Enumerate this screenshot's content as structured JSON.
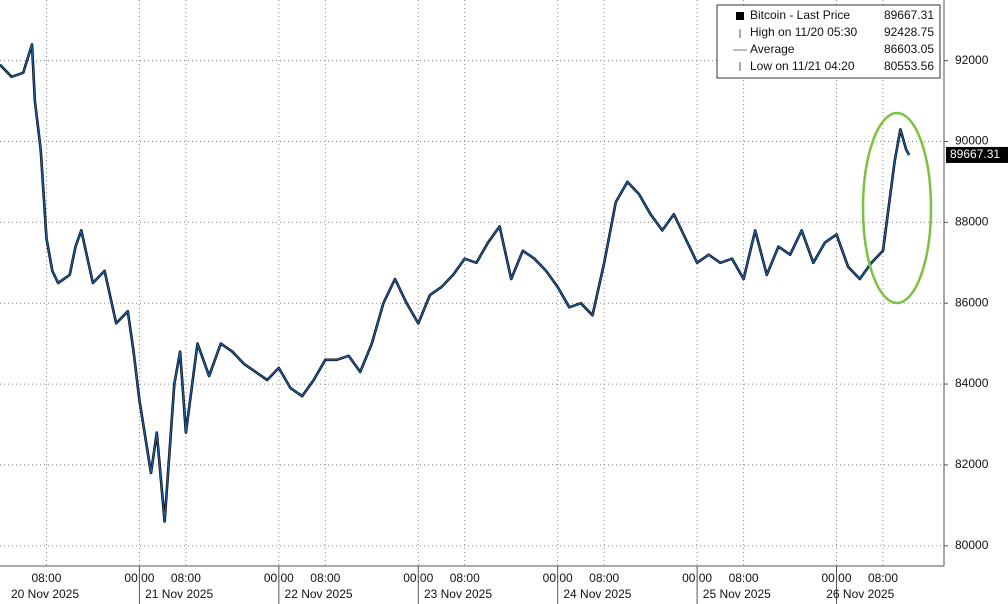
{
  "chart_data": {
    "type": "line",
    "series": [
      {
        "name": "Bitcoin - Last Price",
        "color": "#1d5a9e",
        "x": [
          "2025-11-20 00:00",
          "2025-11-20 02:00",
          "2025-11-20 04:00",
          "2025-11-20 05:30",
          "2025-11-20 06:00",
          "2025-11-20 07:00",
          "2025-11-20 08:00",
          "2025-11-20 09:00",
          "2025-11-20 10:00",
          "2025-11-20 12:00",
          "2025-11-20 13:00",
          "2025-11-20 14:00",
          "2025-11-20 16:00",
          "2025-11-20 18:00",
          "2025-11-20 20:00",
          "2025-11-20 22:00",
          "2025-11-20 23:00",
          "2025-11-21 00:00",
          "2025-11-21 02:00",
          "2025-11-21 03:00",
          "2025-11-21 04:20",
          "2025-11-21 06:00",
          "2025-11-21 07:00",
          "2025-11-21 08:00",
          "2025-11-21 10:00",
          "2025-11-21 12:00",
          "2025-11-21 14:00",
          "2025-11-21 16:00",
          "2025-11-21 18:00",
          "2025-11-21 20:00",
          "2025-11-21 22:00",
          "2025-11-22 00:00",
          "2025-11-22 02:00",
          "2025-11-22 04:00",
          "2025-11-22 06:00",
          "2025-11-22 08:00",
          "2025-11-22 10:00",
          "2025-11-22 12:00",
          "2025-11-22 14:00",
          "2025-11-22 16:00",
          "2025-11-22 18:00",
          "2025-11-22 20:00",
          "2025-11-22 22:00",
          "2025-11-23 00:00",
          "2025-11-23 02:00",
          "2025-11-23 04:00",
          "2025-11-23 06:00",
          "2025-11-23 08:00",
          "2025-11-23 10:00",
          "2025-11-23 12:00",
          "2025-11-23 14:00",
          "2025-11-23 16:00",
          "2025-11-23 18:00",
          "2025-11-23 20:00",
          "2025-11-23 22:00",
          "2025-11-24 00:00",
          "2025-11-24 02:00",
          "2025-11-24 04:00",
          "2025-11-24 06:00",
          "2025-11-24 08:00",
          "2025-11-24 10:00",
          "2025-11-24 12:00",
          "2025-11-24 14:00",
          "2025-11-24 16:00",
          "2025-11-24 18:00",
          "2025-11-24 20:00",
          "2025-11-24 22:00",
          "2025-11-25 00:00",
          "2025-11-25 02:00",
          "2025-11-25 04:00",
          "2025-11-25 06:00",
          "2025-11-25 08:00",
          "2025-11-25 10:00",
          "2025-11-25 12:00",
          "2025-11-25 14:00",
          "2025-11-25 16:00",
          "2025-11-25 18:00",
          "2025-11-25 20:00",
          "2025-11-25 22:00",
          "2025-11-26 00:00",
          "2025-11-26 02:00",
          "2025-11-26 04:00",
          "2025-11-26 06:00",
          "2025-11-26 08:00",
          "2025-11-26 10:00",
          "2025-11-26 11:00",
          "2025-11-26 12:00",
          "2025-11-26 12:30"
        ],
        "values": [
          91900,
          91600,
          91700,
          92400,
          91000,
          89800,
          87600,
          86800,
          86500,
          86700,
          87400,
          87800,
          86500,
          86800,
          85500,
          85800,
          84800,
          83600,
          81800,
          82800,
          80600,
          84000,
          84800,
          82800,
          85000,
          84200,
          85000,
          84800,
          84500,
          84300,
          84100,
          84400,
          83900,
          83700,
          84100,
          84600,
          84600,
          84700,
          84300,
          85000,
          86000,
          86600,
          86000,
          85500,
          86200,
          86400,
          86700,
          87100,
          87000,
          87500,
          87900,
          86600,
          87300,
          87100,
          86800,
          86400,
          85900,
          86000,
          85700,
          87000,
          88500,
          89000,
          88700,
          88200,
          87800,
          88200,
          87600,
          87000,
          87200,
          87000,
          87100,
          86600,
          87800,
          86700,
          87400,
          87200,
          87800,
          87000,
          87500,
          87700,
          86900,
          86600,
          87000,
          87300,
          89500,
          90300,
          89800,
          89667.31
        ]
      }
    ],
    "xlim": [
      "2025-11-20 00:00",
      "2025-11-26 18:30"
    ],
    "xticks": [
      {
        "value": "2025-11-20 08:00",
        "label": "08:00"
      },
      {
        "value": "2025-11-21 00:00",
        "label": "00:00"
      },
      {
        "value": "2025-11-21 08:00",
        "label": "08:00"
      },
      {
        "value": "2025-11-22 00:00",
        "label": "00:00"
      },
      {
        "value": "2025-11-22 08:00",
        "label": "08:00"
      },
      {
        "value": "2025-11-23 00:00",
        "label": "00:00"
      },
      {
        "value": "2025-11-23 08:00",
        "label": "08:00"
      },
      {
        "value": "2025-11-24 00:00",
        "label": "00:00"
      },
      {
        "value": "2025-11-24 08:00",
        "label": "08:00"
      },
      {
        "value": "2025-11-25 00:00",
        "label": "00:00"
      },
      {
        "value": "2025-11-25 08:00",
        "label": "08:00"
      },
      {
        "value": "2025-11-26 00:00",
        "label": "00:00"
      },
      {
        "value": "2025-11-26 08:00",
        "label": "08:00"
      }
    ],
    "xdates": [
      {
        "value": "2025-11-20 00:00",
        "label": "20 Nov 2025"
      },
      {
        "value": "2025-11-21 00:00",
        "label": "21 Nov 2025"
      },
      {
        "value": "2025-11-22 00:00",
        "label": "22 Nov 2025"
      },
      {
        "value": "2025-11-23 00:00",
        "label": "23 Nov 2025"
      },
      {
        "value": "2025-11-24 00:00",
        "label": "24 Nov 2025"
      },
      {
        "value": "2025-11-25 00:00",
        "label": "25 Nov 2025"
      },
      {
        "value": "2025-11-26 00:00",
        "label": "26 Nov 2025"
      }
    ],
    "ylim": [
      79500,
      93500
    ],
    "yticks": [
      80000,
      82000,
      84000,
      86000,
      88000,
      90000,
      92000
    ],
    "grid": true,
    "last_value": 89667.31,
    "legend": [
      {
        "label": "Bitcoin - Last Price",
        "value": 89667.31
      },
      {
        "label": "High on 11/20 05:30",
        "value": 92428.75
      },
      {
        "label": "Average",
        "value": 86603.05
      },
      {
        "label": "Low on 11/21 04:20",
        "value": 80553.56
      }
    ]
  }
}
